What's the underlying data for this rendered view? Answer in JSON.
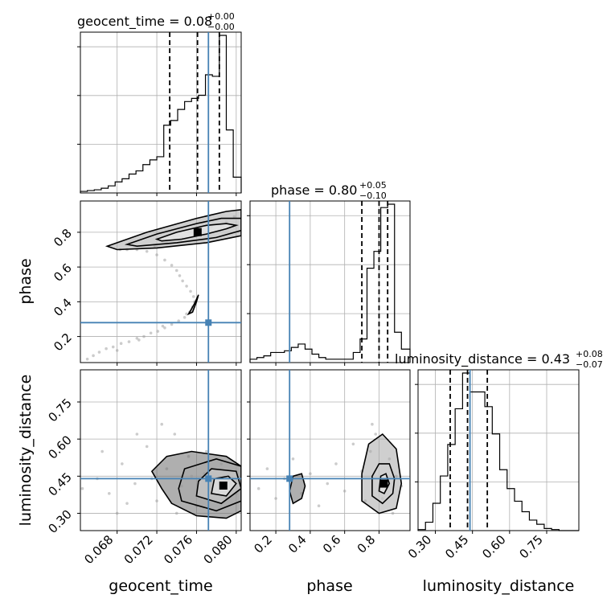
{
  "chart_data": {
    "type": "corner",
    "parameters": [
      "geocent_time",
      "phase",
      "luminosity_distance"
    ],
    "truths": {
      "geocent_time": 0.0772,
      "phase": 0.28,
      "luminosity_distance": 0.44
    },
    "colors": {
      "truth": "#4682b4",
      "hist": "#000000",
      "grid": "#b0b0b0",
      "points": "#9a9a9a"
    },
    "titles": {
      "geocent_time": {
        "name": "geocent_time",
        "value": "0.08",
        "plus": "+0.00",
        "minus": "−0.00"
      },
      "phase": {
        "name": "phase",
        "value": "0.80",
        "plus": "+0.05",
        "minus": "−0.10"
      },
      "luminosity_distance": {
        "name": "luminosity_distance",
        "value": "0.43",
        "plus": "+0.08",
        "minus": "−0.07"
      }
    },
    "ranges": {
      "geocent_time": [
        0.0643,
        0.0805
      ],
      "phase": [
        0.05,
        0.98
      ],
      "luminosity_distance": [
        0.23,
        0.88
      ]
    },
    "ticks": {
      "geocent_time": [
        "0.068",
        "0.072",
        "0.076",
        "0.080"
      ],
      "phase_x": [
        "0.2",
        "0.4",
        "0.6",
        "0.8"
      ],
      "phase_y": [
        "0.2",
        "0.4",
        "0.6",
        "0.8"
      ],
      "luminosity_distance_x": [
        "0.30",
        "0.45",
        "0.60",
        "0.75"
      ],
      "luminosity_distance_y": [
        "0.30",
        "0.45",
        "0.60",
        "0.75"
      ]
    },
    "quantiles": {
      "geocent_time": [
        0.0733,
        0.0761,
        0.0783
      ],
      "phase": [
        0.7,
        0.8,
        0.85
      ],
      "luminosity_distance": [
        0.36,
        0.43,
        0.51
      ]
    },
    "hist_geocent_time": {
      "edges": [
        0.0643,
        0.065,
        0.0657,
        0.0664,
        0.0671,
        0.0678,
        0.0685,
        0.0692,
        0.0699,
        0.0706,
        0.0713,
        0.072,
        0.0727,
        0.0734,
        0.0741,
        0.0748,
        0.0755,
        0.0762,
        0.0769,
        0.0776,
        0.0783,
        0.079,
        0.0797,
        0.0805
      ],
      "counts": [
        2,
        3,
        4,
        6,
        9,
        14,
        18,
        24,
        28,
        36,
        42,
        46,
        86,
        92,
        106,
        116,
        120,
        124,
        150,
        148,
        200,
        80,
        20
      ]
    },
    "hist_phase": {
      "edges": [
        0.05,
        0.09,
        0.13,
        0.17,
        0.21,
        0.25,
        0.29,
        0.33,
        0.37,
        0.41,
        0.45,
        0.49,
        0.53,
        0.57,
        0.61,
        0.65,
        0.69,
        0.73,
        0.77,
        0.81,
        0.85,
        0.89,
        0.93,
        0.98
      ],
      "counts": [
        2,
        3,
        4,
        6,
        6,
        7,
        9,
        11,
        8,
        5,
        3,
        2,
        2,
        2,
        2,
        6,
        14,
        56,
        66,
        92,
        94,
        18,
        8
      ]
    },
    "hist_luminosity_distance": {
      "edges": [
        0.23,
        0.26,
        0.29,
        0.32,
        0.35,
        0.38,
        0.41,
        0.44,
        0.47,
        0.5,
        0.53,
        0.56,
        0.59,
        0.62,
        0.65,
        0.68,
        0.71,
        0.74,
        0.77,
        0.8,
        0.83,
        0.86,
        0.88
      ],
      "counts": [
        1,
        8,
        26,
        52,
        82,
        116,
        150,
        132,
        132,
        118,
        92,
        58,
        40,
        28,
        18,
        10,
        6,
        2,
        1,
        0,
        0,
        0
      ]
    },
    "scatter_phase_vs_geocent": [
      [
        0.065,
        0.07
      ],
      [
        0.0656,
        0.09
      ],
      [
        0.0662,
        0.11
      ],
      [
        0.0669,
        0.13
      ],
      [
        0.0676,
        0.14
      ],
      [
        0.0684,
        0.16
      ],
      [
        0.0692,
        0.17
      ],
      [
        0.07,
        0.19
      ],
      [
        0.0707,
        0.2
      ],
      [
        0.0714,
        0.22
      ],
      [
        0.0721,
        0.23
      ],
      [
        0.0728,
        0.25
      ],
      [
        0.0735,
        0.27
      ],
      [
        0.0742,
        0.29
      ],
      [
        0.0748,
        0.31
      ],
      [
        0.0753,
        0.34
      ],
      [
        0.0756,
        0.37
      ],
      [
        0.0758,
        0.4
      ],
      [
        0.0757,
        0.43
      ],
      [
        0.0754,
        0.46
      ],
      [
        0.075,
        0.49
      ],
      [
        0.0746,
        0.52
      ],
      [
        0.0743,
        0.55
      ],
      [
        0.074,
        0.58
      ],
      [
        0.0735,
        0.61
      ],
      [
        0.0728,
        0.64
      ],
      [
        0.072,
        0.67
      ],
      [
        0.071,
        0.69
      ],
      [
        0.07,
        0.7
      ],
      [
        0.069,
        0.7
      ],
      [
        0.0683,
        0.7
      ],
      [
        0.0718,
        0.72
      ],
      [
        0.073,
        0.74
      ],
      [
        0.0745,
        0.77
      ],
      [
        0.076,
        0.8
      ],
      [
        0.0775,
        0.83
      ],
      [
        0.079,
        0.86
      ],
      [
        0.0798,
        0.89
      ],
      [
        0.068,
        0.12
      ],
      [
        0.0702,
        0.18
      ],
      [
        0.0726,
        0.26
      ],
      [
        0.075,
        0.33
      ]
    ],
    "scatter_ld_vs_geocent": [
      [
        0.066,
        0.44
      ],
      [
        0.0672,
        0.38
      ],
      [
        0.0685,
        0.5
      ],
      [
        0.0698,
        0.42
      ],
      [
        0.071,
        0.57
      ],
      [
        0.072,
        0.35
      ],
      [
        0.073,
        0.48
      ],
      [
        0.0738,
        0.62
      ],
      [
        0.0745,
        0.41
      ],
      [
        0.0752,
        0.53
      ],
      [
        0.076,
        0.33
      ],
      [
        0.0768,
        0.46
      ],
      [
        0.0775,
        0.38
      ],
      [
        0.0782,
        0.42
      ],
      [
        0.079,
        0.36
      ],
      [
        0.0796,
        0.44
      ],
      [
        0.0665,
        0.55
      ],
      [
        0.069,
        0.34
      ],
      [
        0.0715,
        0.44
      ],
      [
        0.074,
        0.3
      ],
      [
        0.077,
        0.55
      ],
      [
        0.07,
        0.62
      ],
      [
        0.0725,
        0.66
      ],
      [
        0.068,
        0.3
      ],
      [
        0.0755,
        0.45
      ],
      [
        0.0785,
        0.5
      ],
      [
        0.0645,
        0.4
      ],
      [
        0.08,
        0.38
      ]
    ],
    "scatter_ld_vs_phase": [
      [
        0.1,
        0.4
      ],
      [
        0.15,
        0.48
      ],
      [
        0.2,
        0.36
      ],
      [
        0.25,
        0.44
      ],
      [
        0.3,
        0.52
      ],
      [
        0.35,
        0.38
      ],
      [
        0.4,
        0.46
      ],
      [
        0.45,
        0.33
      ],
      [
        0.5,
        0.42
      ],
      [
        0.55,
        0.5
      ],
      [
        0.6,
        0.39
      ],
      [
        0.7,
        0.47
      ],
      [
        0.75,
        0.55
      ],
      [
        0.78,
        0.62
      ],
      [
        0.8,
        0.4
      ],
      [
        0.82,
        0.36
      ],
      [
        0.84,
        0.44
      ],
      [
        0.86,
        0.52
      ],
      [
        0.88,
        0.3
      ],
      [
        0.9,
        0.45
      ],
      [
        0.76,
        0.66
      ],
      [
        0.72,
        0.35
      ],
      [
        0.93,
        0.41
      ],
      [
        0.65,
        0.58
      ]
    ],
    "contours_phase_vs_geocent": [
      [
        [
          0.072,
          0.76
        ],
        [
          0.074,
          0.8
        ],
        [
          0.077,
          0.84
        ],
        [
          0.079,
          0.85
        ],
        [
          0.08,
          0.84
        ],
        [
          0.079,
          0.82
        ],
        [
          0.077,
          0.79
        ],
        [
          0.0745,
          0.76
        ],
        [
          0.0725,
          0.75
        ]
      ],
      [
        [
          0.069,
          0.73
        ],
        [
          0.072,
          0.79
        ],
        [
          0.076,
          0.85
        ],
        [
          0.0785,
          0.88
        ],
        [
          0.0805,
          0.88
        ],
        [
          0.0805,
          0.81
        ],
        [
          0.078,
          0.77
        ],
        [
          0.074,
          0.74
        ],
        [
          0.07,
          0.72
        ]
      ],
      [
        [
          0.067,
          0.72
        ],
        [
          0.071,
          0.8
        ],
        [
          0.076,
          0.88
        ],
        [
          0.079,
          0.92
        ],
        [
          0.0805,
          0.93
        ],
        [
          0.0805,
          0.78
        ],
        [
          0.077,
          0.74
        ],
        [
          0.072,
          0.71
        ],
        [
          0.068,
          0.7
        ]
      ],
      [
        [
          0.0752,
          0.33
        ],
        [
          0.0758,
          0.39
        ],
        [
          0.0762,
          0.44
        ],
        [
          0.076,
          0.4
        ],
        [
          0.0756,
          0.34
        ]
      ]
    ],
    "contours_ld_vs_geocent": [
      [
        [
          0.0775,
          0.38
        ],
        [
          0.079,
          0.37
        ],
        [
          0.08,
          0.42
        ],
        [
          0.0792,
          0.45
        ],
        [
          0.0778,
          0.44
        ]
      ],
      [
        [
          0.076,
          0.37
        ],
        [
          0.0785,
          0.34
        ],
        [
          0.0805,
          0.4
        ],
        [
          0.08,
          0.47
        ],
        [
          0.0775,
          0.48
        ],
        [
          0.0762,
          0.43
        ]
      ],
      [
        [
          0.0745,
          0.35
        ],
        [
          0.078,
          0.31
        ],
        [
          0.0805,
          0.35
        ],
        [
          0.0805,
          0.49
        ],
        [
          0.078,
          0.52
        ],
        [
          0.0748,
          0.48
        ],
        [
          0.0742,
          0.4
        ]
      ],
      [
        [
          0.0735,
          0.34
        ],
        [
          0.076,
          0.29
        ],
        [
          0.079,
          0.28
        ],
        [
          0.0805,
          0.31
        ],
        [
          0.0805,
          0.49
        ],
        [
          0.079,
          0.53
        ],
        [
          0.0755,
          0.55
        ],
        [
          0.073,
          0.53
        ],
        [
          0.0715,
          0.47
        ],
        [
          0.0725,
          0.4
        ]
      ]
    ],
    "contours_ld_vs_phase": [
      [
        [
          0.8,
          0.39
        ],
        [
          0.83,
          0.38
        ],
        [
          0.86,
          0.42
        ],
        [
          0.84,
          0.46
        ],
        [
          0.81,
          0.45
        ]
      ],
      [
        [
          0.76,
          0.37
        ],
        [
          0.82,
          0.34
        ],
        [
          0.88,
          0.38
        ],
        [
          0.89,
          0.44
        ],
        [
          0.86,
          0.5
        ],
        [
          0.8,
          0.5
        ],
        [
          0.76,
          0.45
        ]
      ],
      [
        [
          0.7,
          0.35
        ],
        [
          0.8,
          0.3
        ],
        [
          0.9,
          0.32
        ],
        [
          0.93,
          0.42
        ],
        [
          0.9,
          0.56
        ],
        [
          0.82,
          0.62
        ],
        [
          0.74,
          0.58
        ],
        [
          0.7,
          0.46
        ]
      ],
      [
        [
          0.3,
          0.34
        ],
        [
          0.35,
          0.36
        ],
        [
          0.37,
          0.41
        ],
        [
          0.35,
          0.46
        ],
        [
          0.3,
          0.45
        ],
        [
          0.28,
          0.39
        ]
      ]
    ],
    "axis_labels": {
      "x1": "geocent_time",
      "x2": "phase",
      "x3": "luminosity_distance",
      "y2": "phase",
      "y3": "luminosity_distance"
    }
  }
}
